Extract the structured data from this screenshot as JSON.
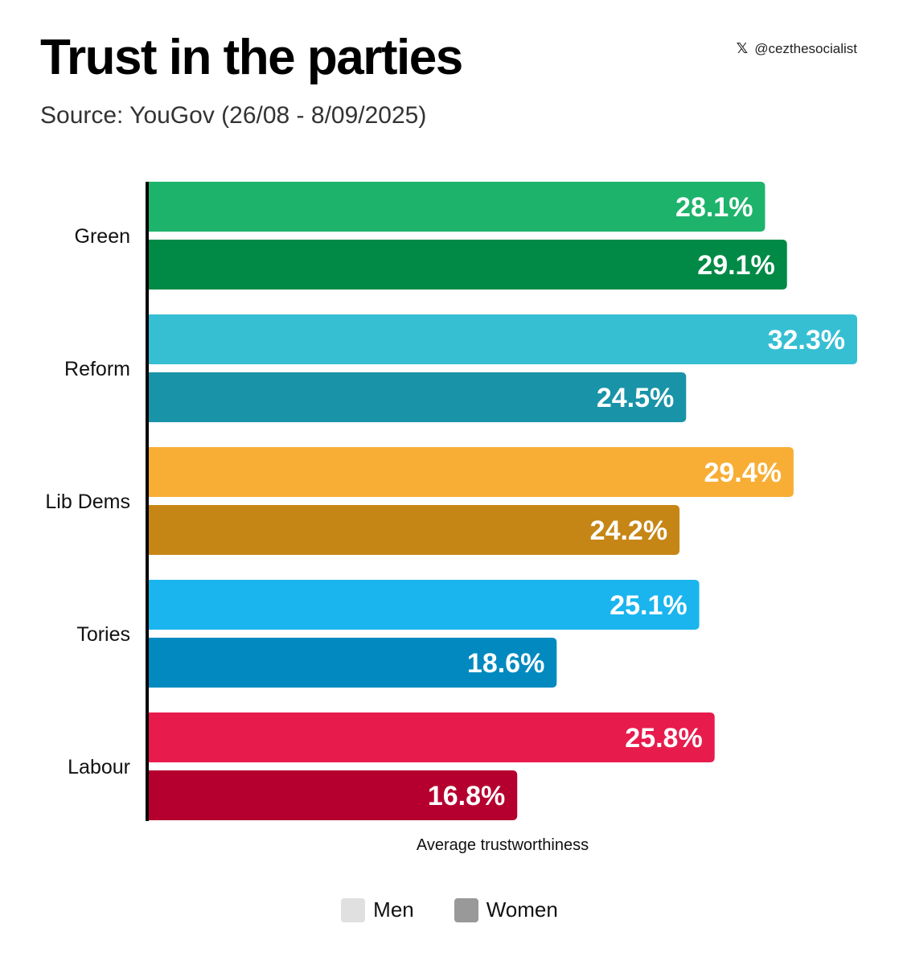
{
  "header": {
    "title": "Trust in the parties",
    "subtitle": "Source: YouGov (26/08 - 8/09/2025)",
    "handle": "@cezthesocialist",
    "handle_icon": "x-logo-icon"
  },
  "chart_data": {
    "type": "bar",
    "orientation": "horizontal",
    "categories": [
      "Green",
      "Reform",
      "Lib Dems",
      "Tories",
      "Labour"
    ],
    "series": [
      {
        "name": "Men",
        "values": [
          28.1,
          32.3,
          29.4,
          25.1,
          25.8
        ]
      },
      {
        "name": "Women",
        "values": [
          29.1,
          24.5,
          24.2,
          18.6,
          16.8
        ]
      }
    ],
    "data_labels": [
      [
        "28.1%",
        "29.1%"
      ],
      [
        "32.3%",
        "24.5%"
      ],
      [
        "29.4%",
        "24.2%"
      ],
      [
        "25.1%",
        "18.6%"
      ],
      [
        "25.8%",
        "16.8%"
      ]
    ],
    "colors": [
      [
        "#1db36b",
        "#018a46"
      ],
      [
        "#36bfd3",
        "#1993a8"
      ],
      [
        "#f8ae35",
        "#c68616"
      ],
      [
        "#1ab5ee",
        "#028ac0"
      ],
      [
        "#e81b4d",
        "#b5002f"
      ]
    ],
    "xlabel": "Average trustworthiness",
    "ylabel": "",
    "xlim": [
      0,
      32.3
    ],
    "grid": false,
    "legend_position": "bottom",
    "legend": [
      {
        "label": "Men",
        "color": "#e0e0e0"
      },
      {
        "label": "Women",
        "color": "#999999"
      }
    ]
  }
}
